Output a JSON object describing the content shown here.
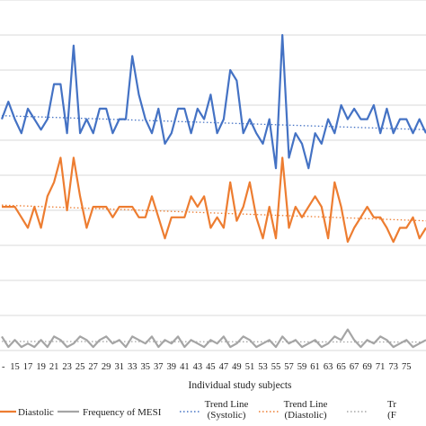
{
  "chart_data": {
    "type": "line",
    "xlabel": "Individual study subjects",
    "ylabel": "",
    "title": "",
    "x_tick_labels": [
      "15",
      "17",
      "19",
      "21",
      "23",
      "25",
      "27",
      "29",
      "31",
      "33",
      "35",
      "37",
      "39",
      "41",
      "43",
      "45",
      "47",
      "49",
      "51",
      "53",
      "55",
      "57",
      "59",
      "61",
      "63",
      "65",
      "67",
      "69",
      "71",
      "73",
      "75"
    ],
    "x_range": [
      13,
      78
    ],
    "y_range": [
      0,
      100
    ],
    "grid": "horizontal",
    "legend_position": "bottom",
    "series": [
      {
        "name": "",
        "color": "#4472C4",
        "style": "solid",
        "x": [
          13,
          14,
          15,
          16,
          17,
          18,
          19,
          20,
          21,
          22,
          23,
          24,
          25,
          26,
          27,
          28,
          29,
          30,
          31,
          32,
          33,
          34,
          35,
          36,
          37,
          38,
          39,
          40,
          41,
          42,
          43,
          44,
          45,
          46,
          47,
          48,
          49,
          50,
          51,
          52,
          53,
          54,
          55,
          56,
          57,
          58,
          59,
          60,
          61,
          62,
          63,
          64,
          65,
          66,
          67,
          68,
          69,
          70,
          71,
          72,
          73,
          74,
          75,
          76,
          77,
          78
        ],
        "values": [
          66,
          71,
          66,
          62,
          69,
          66,
          63,
          66,
          76,
          76,
          62,
          87,
          62,
          66,
          62,
          69,
          69,
          62,
          66,
          66,
          84,
          73,
          66,
          62,
          69,
          59,
          62,
          69,
          69,
          62,
          69,
          66,
          73,
          62,
          66,
          80,
          77,
          62,
          66,
          62,
          59,
          66,
          52,
          90,
          55,
          62,
          59,
          52,
          62,
          59,
          66,
          62,
          70,
          66,
          69,
          66,
          66,
          70,
          62,
          69,
          62,
          66,
          66,
          62,
          66,
          62
        ]
      },
      {
        "name": "Diastolic",
        "color": "#ED7D31",
        "style": "solid",
        "x": [
          13,
          14,
          15,
          16,
          17,
          18,
          19,
          20,
          21,
          22,
          23,
          24,
          25,
          26,
          27,
          28,
          29,
          30,
          31,
          32,
          33,
          34,
          35,
          36,
          37,
          38,
          39,
          40,
          41,
          42,
          43,
          44,
          45,
          46,
          47,
          48,
          49,
          50,
          51,
          52,
          53,
          54,
          55,
          56,
          57,
          58,
          59,
          60,
          61,
          62,
          63,
          64,
          65,
          66,
          67,
          68,
          69,
          70,
          71,
          72,
          73,
          74,
          75,
          76,
          77,
          78
        ],
        "values": [
          41,
          41,
          41,
          38,
          35,
          41,
          35,
          44,
          48,
          55,
          40,
          55,
          44,
          35,
          41,
          41,
          41,
          38,
          41,
          41,
          41,
          38,
          38,
          44,
          38,
          32,
          38,
          38,
          38,
          44,
          41,
          44,
          35,
          38,
          35,
          48,
          37,
          41,
          48,
          38,
          32,
          41,
          32,
          55,
          35,
          41,
          38,
          41,
          44,
          41,
          32,
          48,
          41,
          31,
          35,
          38,
          41,
          38,
          38,
          35,
          31,
          35,
          35,
          38,
          32,
          35
        ]
      },
      {
        "name": "Frequency of MESI",
        "color": "#A5A5A5",
        "style": "solid",
        "x": [
          13,
          14,
          15,
          16,
          17,
          18,
          19,
          20,
          21,
          22,
          23,
          24,
          25,
          26,
          27,
          28,
          29,
          30,
          31,
          32,
          33,
          34,
          35,
          36,
          37,
          38,
          39,
          40,
          41,
          42,
          43,
          44,
          45,
          46,
          47,
          48,
          49,
          50,
          51,
          52,
          53,
          54,
          55,
          56,
          57,
          58,
          59,
          60,
          61,
          62,
          63,
          64,
          65,
          66,
          67,
          68,
          69,
          70,
          71,
          72,
          73,
          74,
          75,
          76,
          77,
          78
        ],
        "values": [
          4,
          1,
          3,
          1,
          2,
          1,
          3,
          1,
          4,
          3,
          1,
          2,
          4,
          3,
          1,
          3,
          4,
          2,
          3,
          1,
          4,
          3,
          2,
          4,
          1,
          3,
          2,
          4,
          1,
          3,
          2,
          1,
          3,
          2,
          4,
          1,
          2,
          4,
          3,
          1,
          2,
          3,
          1,
          4,
          2,
          3,
          1,
          2,
          3,
          1,
          2,
          4,
          3,
          6,
          3,
          1,
          3,
          2,
          4,
          3,
          1,
          2,
          3,
          1,
          2,
          3
        ]
      },
      {
        "name": "Trend Line (Systolic)",
        "color": "#4472C4",
        "style": "dotted",
        "x": [
          13,
          78
        ],
        "values": [
          67,
          63
        ]
      },
      {
        "name": "Trend Line (Diastolic)",
        "color": "#ED7D31",
        "style": "dotted",
        "x": [
          13,
          78
        ],
        "values": [
          41.5,
          37
        ]
      },
      {
        "name": "",
        "color": "#A5A5A5",
        "style": "dotted",
        "x": [
          13,
          78
        ],
        "values": [
          2.6,
          2.4
        ]
      }
    ],
    "legend": [
      {
        "label": "Diastolic",
        "color": "#ED7D31",
        "style": "solid"
      },
      {
        "label": "Frequency of MESI",
        "color": "#A5A5A5",
        "style": "solid"
      },
      {
        "label": "Trend Line",
        "label2": "(Systolic)",
        "color": "#4472C4",
        "style": "dotted"
      },
      {
        "label": "Trend Line",
        "label2": "(Diastolic)",
        "color": "#ED7D31",
        "style": "dotted"
      },
      {
        "label": "Tr",
        "label2": "(F",
        "color": "#A5A5A5",
        "style": "dotted"
      }
    ]
  }
}
